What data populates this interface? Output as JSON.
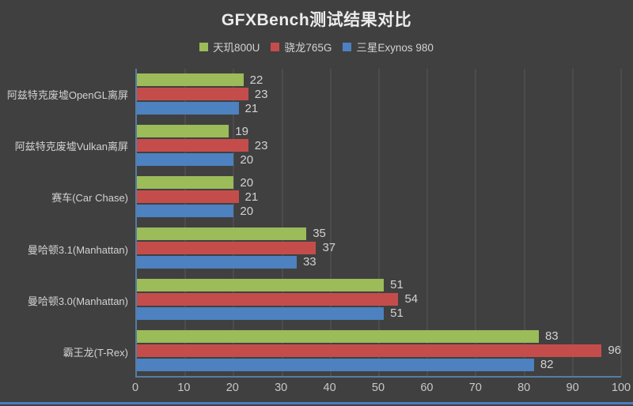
{
  "page": {
    "background_color": "#404040",
    "bottom_divider_color": "#4D7EBE"
  },
  "chart_data": {
    "type": "bar",
    "orientation": "horizontal",
    "title": "GFXBench测试结果对比",
    "legend_position": "top",
    "grid": true,
    "value_labels": true,
    "xlim": [
      0,
      100
    ],
    "x_ticks": [
      0,
      10,
      20,
      30,
      40,
      50,
      60,
      70,
      80,
      90,
      100
    ],
    "categories": [
      "阿兹特克废墟OpenGL离屏",
      "阿兹特克废墟Vulkan离屏",
      "赛车(Car Chase)",
      "曼哈顿3.1(Manhattan)",
      "曼哈顿3.0(Manhattan)",
      "霸王龙(T-Rex)"
    ],
    "series": [
      {
        "name": "天玑800U",
        "color": "#9CBB59",
        "values": [
          22,
          19,
          20,
          35,
          51,
          83
        ]
      },
      {
        "name": "骁龙765G",
        "color": "#C44D4B",
        "values": [
          23,
          23,
          21,
          37,
          54,
          96
        ]
      },
      {
        "name": "三星Exynos 980",
        "color": "#4D81C0",
        "values": [
          21,
          20,
          20,
          33,
          51,
          82
        ]
      }
    ],
    "colors": {
      "axis_line": "#567d9e",
      "gridline": "#4C4C4C",
      "title_text": "#ECECEC",
      "label_text": "#D2D2D2",
      "tick_text": "#C8C8C8"
    }
  }
}
